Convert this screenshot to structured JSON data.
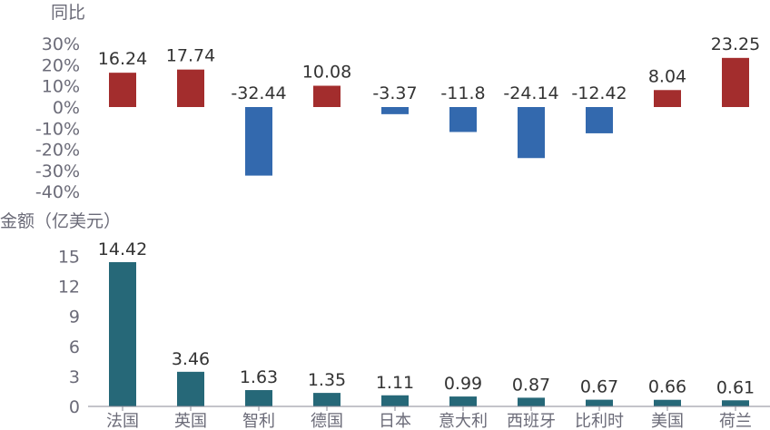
{
  "chart_data": [
    {
      "type": "bar",
      "title": "同比",
      "categories": [
        "法国",
        "英国",
        "智利",
        "德国",
        "日本",
        "意大利",
        "西班牙",
        "比利时",
        "美国",
        "荷兰"
      ],
      "values": [
        16.24,
        17.74,
        -32.44,
        10.08,
        -3.37,
        -11.8,
        -24.14,
        -12.42,
        8.04,
        23.25
      ],
      "value_labels": [
        "16.24",
        "17.74",
        "-32.44",
        "10.08",
        "-3.37",
        "-11.8",
        "-24.14",
        "-12.42",
        "8.04",
        "23.25"
      ],
      "ylabel": "同比",
      "ylim": [
        -40,
        30
      ],
      "yticks": [
        "30%",
        "20%",
        "10%",
        "0%",
        "-10%",
        "-20%",
        "-30%",
        "-40%"
      ],
      "ytick_values": [
        30,
        20,
        10,
        0,
        -10,
        -20,
        -30,
        -40
      ],
      "colors": {
        "positive": "#a32d2d",
        "negative": "#3369ae"
      },
      "grid": false
    },
    {
      "type": "bar",
      "title": "金额（亿美元）",
      "categories": [
        "法国",
        "英国",
        "智利",
        "德国",
        "日本",
        "意大利",
        "西班牙",
        "比利时",
        "美国",
        "荷兰"
      ],
      "values": [
        14.42,
        3.46,
        1.63,
        1.35,
        1.11,
        0.99,
        0.87,
        0.67,
        0.66,
        0.61
      ],
      "value_labels": [
        "14.42",
        "3.46",
        "1.63",
        "1.35",
        "1.11",
        "0.99",
        "0.87",
        "0.67",
        "0.66",
        "0.61"
      ],
      "ylabel": "金额（亿美元）",
      "ylim": [
        0,
        15
      ],
      "yticks": [
        "15",
        "12",
        "9",
        "6",
        "3",
        "0"
      ],
      "ytick_values": [
        15,
        12,
        9,
        6,
        3,
        0
      ],
      "colors": {
        "bar": "#266878"
      },
      "grid": false
    }
  ]
}
